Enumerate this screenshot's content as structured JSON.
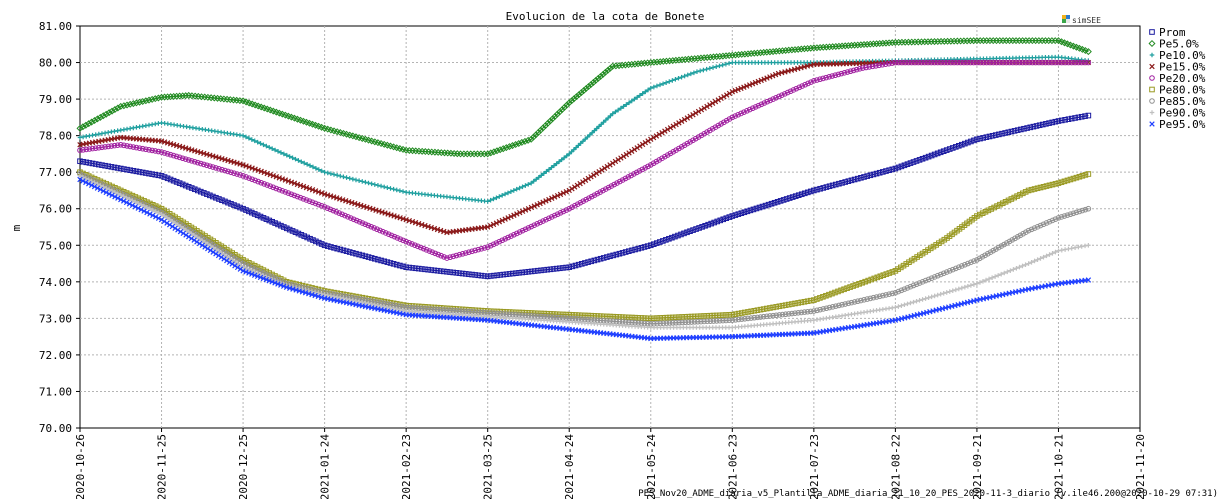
{
  "chart_data": {
    "type": "line",
    "title": "Evolucion de la cota de Bonete",
    "ylabel": "m",
    "xlabel": "",
    "brand": "simSEE",
    "footer": "PES_Nov20_ADME_diaria_v5_Plantilla_ADME_diaria_21_10_20_PES_2020-11-3_diario (v.ile46.200@2020-10-29 07:31)",
    "ylim": [
      70,
      81
    ],
    "xlim": [
      "2020-10-26",
      "2021-11-20"
    ],
    "yticks": [
      "70.00",
      "71.00",
      "72.00",
      "73.00",
      "74.00",
      "75.00",
      "76.00",
      "77.00",
      "78.00",
      "79.00",
      "80.00",
      "81.00"
    ],
    "xticks": [
      "2020-10-26",
      "2020-11-25",
      "2020-12-25",
      "2021-01-24",
      "2021-02-23",
      "2021-03-25",
      "2021-04-24",
      "2021-05-24",
      "2021-06-23",
      "2021-07-23",
      "2021-08-22",
      "2021-09-21",
      "2021-10-21",
      "2021-11-20"
    ],
    "grid": true,
    "legend_position": "right",
    "series": [
      {
        "name": "Prom",
        "color": "#1a1aa0",
        "marker": "square",
        "x": [
          "2020-10-26",
          "2020-11-25",
          "2020-12-25",
          "2021-01-24",
          "2021-02-23",
          "2021-03-25",
          "2021-04-24",
          "2021-05-24",
          "2021-06-23",
          "2021-07-23",
          "2021-08-22",
          "2021-09-21",
          "2021-10-21",
          "2021-11-01"
        ],
        "y": [
          77.3,
          76.9,
          76.0,
          75.0,
          74.4,
          74.15,
          74.4,
          75.0,
          75.8,
          76.5,
          77.1,
          77.9,
          78.4,
          78.55
        ]
      },
      {
        "name": "Pe5.0%",
        "color": "#228b22",
        "marker": "diamond",
        "x": [
          "2020-10-26",
          "2020-11-10",
          "2020-11-25",
          "2020-12-05",
          "2020-12-25",
          "2021-01-24",
          "2021-02-23",
          "2021-03-15",
          "2021-03-25",
          "2021-04-10",
          "2021-04-24",
          "2021-05-10",
          "2021-05-24",
          "2021-06-23",
          "2021-07-23",
          "2021-08-22",
          "2021-09-21",
          "2021-10-21",
          "2021-11-01"
        ],
        "y": [
          78.2,
          78.8,
          79.05,
          79.1,
          78.95,
          78.2,
          77.6,
          77.5,
          77.5,
          77.9,
          78.9,
          79.9,
          80.0,
          80.2,
          80.4,
          80.55,
          80.6,
          80.6,
          80.3
        ]
      },
      {
        "name": "Pe10.0%",
        "color": "#20a0a0",
        "marker": "plus",
        "x": [
          "2020-10-26",
          "2020-11-25",
          "2020-12-25",
          "2021-01-24",
          "2021-02-23",
          "2021-03-25",
          "2021-04-10",
          "2021-04-24",
          "2021-05-10",
          "2021-05-24",
          "2021-06-10",
          "2021-06-23",
          "2021-07-23",
          "2021-08-22",
          "2021-09-21",
          "2021-10-21",
          "2021-11-01"
        ],
        "y": [
          77.95,
          78.35,
          78.0,
          77.0,
          76.45,
          76.2,
          76.7,
          77.5,
          78.6,
          79.3,
          79.75,
          80.0,
          80.0,
          80.05,
          80.1,
          80.15,
          80.05
        ]
      },
      {
        "name": "Pe15.0%",
        "color": "#8b1a1a",
        "marker": "x",
        "x": [
          "2020-10-26",
          "2020-11-10",
          "2020-11-25",
          "2020-12-25",
          "2021-01-24",
          "2021-02-23",
          "2021-03-10",
          "2021-03-25",
          "2021-04-24",
          "2021-05-24",
          "2021-06-23",
          "2021-07-10",
          "2021-07-23",
          "2021-08-22",
          "2021-09-21",
          "2021-10-21",
          "2021-11-01"
        ],
        "y": [
          77.75,
          77.95,
          77.85,
          77.2,
          76.4,
          75.7,
          75.35,
          75.5,
          76.5,
          77.9,
          79.2,
          79.7,
          79.95,
          80.0,
          80.0,
          80.0,
          80.0
        ]
      },
      {
        "name": "Pe20.0%",
        "color": "#a020a0",
        "marker": "circle",
        "x": [
          "2020-10-26",
          "2020-11-10",
          "2020-11-25",
          "2020-12-25",
          "2021-01-24",
          "2021-02-23",
          "2021-03-10",
          "2021-03-25",
          "2021-04-24",
          "2021-05-24",
          "2021-06-23",
          "2021-07-23",
          "2021-08-10",
          "2021-08-22",
          "2021-09-21",
          "2021-10-21",
          "2021-11-01"
        ],
        "y": [
          77.6,
          77.75,
          77.55,
          76.9,
          76.05,
          75.1,
          74.65,
          74.95,
          76.0,
          77.2,
          78.5,
          79.5,
          79.85,
          80.0,
          80.0,
          80.0,
          80.0
        ]
      },
      {
        "name": "Pe80.0%",
        "color": "#999922",
        "marker": "square",
        "x": [
          "2020-10-26",
          "2020-11-25",
          "2020-12-25",
          "2021-01-10",
          "2021-01-24",
          "2021-02-23",
          "2021-03-25",
          "2021-04-24",
          "2021-05-24",
          "2021-06-23",
          "2021-07-23",
          "2021-08-22",
          "2021-09-10",
          "2021-09-21",
          "2021-10-10",
          "2021-10-21",
          "2021-11-01"
        ],
        "y": [
          77.0,
          76.0,
          74.6,
          74.0,
          73.75,
          73.35,
          73.2,
          73.1,
          73.0,
          73.1,
          73.5,
          74.3,
          75.2,
          75.8,
          76.5,
          76.7,
          76.95
        ]
      },
      {
        "name": "Pe85.0%",
        "color": "#909090",
        "marker": "circle",
        "x": [
          "2020-10-26",
          "2020-11-25",
          "2020-12-25",
          "2021-01-10",
          "2021-01-24",
          "2021-02-23",
          "2021-03-25",
          "2021-04-24",
          "2021-05-24",
          "2021-06-23",
          "2021-07-23",
          "2021-08-22",
          "2021-09-21",
          "2021-10-10",
          "2021-10-21",
          "2021-11-01"
        ],
        "y": [
          76.95,
          75.9,
          74.5,
          73.95,
          73.7,
          73.3,
          73.15,
          73.0,
          72.85,
          72.95,
          73.2,
          73.7,
          74.6,
          75.4,
          75.75,
          76.0
        ]
      },
      {
        "name": "Pe90.0%",
        "color": "#c0c0c0",
        "marker": "plus",
        "x": [
          "2020-10-26",
          "2020-11-25",
          "2020-12-25",
          "2021-01-10",
          "2021-01-24",
          "2021-02-23",
          "2021-03-25",
          "2021-04-24",
          "2021-05-24",
          "2021-06-23",
          "2021-07-23",
          "2021-08-22",
          "2021-09-21",
          "2021-10-10",
          "2021-10-21",
          "2021-11-01"
        ],
        "y": [
          76.9,
          75.85,
          74.4,
          73.9,
          73.65,
          73.2,
          73.05,
          72.9,
          72.75,
          72.75,
          72.95,
          73.3,
          73.95,
          74.5,
          74.85,
          75.0
        ]
      },
      {
        "name": "Pe95.0%",
        "color": "#1f3fff",
        "marker": "x",
        "x": [
          "2020-10-26",
          "2020-11-25",
          "2020-12-25",
          "2021-01-10",
          "2021-01-24",
          "2021-02-23",
          "2021-03-25",
          "2021-04-24",
          "2021-05-24",
          "2021-06-23",
          "2021-07-23",
          "2021-08-22",
          "2021-09-21",
          "2021-10-10",
          "2021-10-21",
          "2021-11-01"
        ],
        "y": [
          76.8,
          75.7,
          74.3,
          73.85,
          73.55,
          73.1,
          72.95,
          72.7,
          72.45,
          72.5,
          72.6,
          72.95,
          73.5,
          73.8,
          73.95,
          74.05
        ]
      }
    ]
  }
}
